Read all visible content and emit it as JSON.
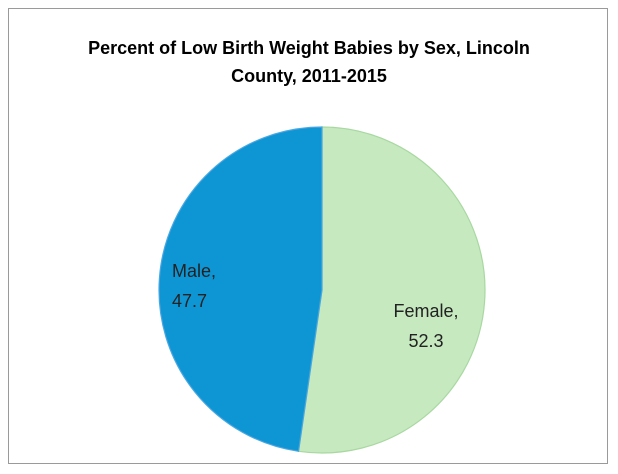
{
  "chart_data": {
    "type": "pie",
    "title": "Percent of Low Birth Weight Babies by Sex, Lincoln County, 2011-2015",
    "values": [
      52.3,
      47.7
    ],
    "value_labels": [
      "Female, 52.3",
      "Male, 47.7"
    ],
    "colors": [
      "#c6e9c0",
      "#0e96d4"
    ]
  }
}
